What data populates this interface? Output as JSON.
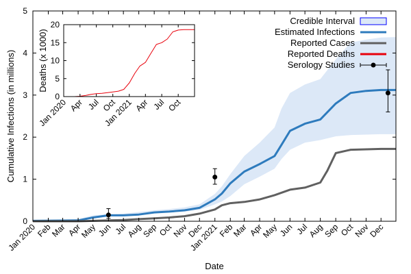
{
  "chart_data": [
    {
      "id": "main",
      "type": "line",
      "xlabel": "Date",
      "ylabel": "Cumulative Infections (in millions)",
      "ylim": [
        0,
        5
      ],
      "y_ticks": [
        0,
        1,
        2,
        3,
        4,
        5
      ],
      "x_domain": [
        "2020-01-01",
        "2021-12-31"
      ],
      "x_ticks": [
        {
          "date": "2020-01-01",
          "label": "Jan 2020"
        },
        {
          "date": "2020-02-01",
          "label": "Feb"
        },
        {
          "date": "2020-03-01",
          "label": "Mar"
        },
        {
          "date": "2020-04-01",
          "label": "Apr"
        },
        {
          "date": "2020-05-01",
          "label": "May"
        },
        {
          "date": "2020-06-01",
          "label": "Jun"
        },
        {
          "date": "2020-07-01",
          "label": "Jul"
        },
        {
          "date": "2020-08-01",
          "label": "Aug"
        },
        {
          "date": "2020-09-01",
          "label": "Sep"
        },
        {
          "date": "2020-10-01",
          "label": "Oct"
        },
        {
          "date": "2020-11-01",
          "label": "Nov"
        },
        {
          "date": "2020-12-01",
          "label": "Dec"
        },
        {
          "date": "2021-01-01",
          "label": "Jan 2021"
        },
        {
          "date": "2021-02-01",
          "label": "Feb"
        },
        {
          "date": "2021-03-01",
          "label": "Mar"
        },
        {
          "date": "2021-04-01",
          "label": "Apr"
        },
        {
          "date": "2021-05-01",
          "label": "May"
        },
        {
          "date": "2021-06-01",
          "label": "Jun"
        },
        {
          "date": "2021-07-01",
          "label": "Jul"
        },
        {
          "date": "2021-08-01",
          "label": "Aug"
        },
        {
          "date": "2021-09-01",
          "label": "Sep"
        },
        {
          "date": "2021-10-01",
          "label": "Oct"
        },
        {
          "date": "2021-11-01",
          "label": "Nov"
        },
        {
          "date": "2021-12-01",
          "label": "Dec"
        }
      ],
      "legend_position": "top-right",
      "credible_interval": {
        "name": "Credible Interval",
        "color": "#dce8f7",
        "edge_color": "#0000ff",
        "x": [
          "2020-01-01",
          "2020-04-01",
          "2020-05-01",
          "2020-06-01",
          "2020-07-01",
          "2020-08-01",
          "2020-09-01",
          "2020-10-01",
          "2020-11-01",
          "2020-12-01",
          "2021-01-01",
          "2021-01-15",
          "2021-02-01",
          "2021-03-01",
          "2021-04-01",
          "2021-05-01",
          "2021-05-15",
          "2021-06-01",
          "2021-07-01",
          "2021-08-01",
          "2021-09-01",
          "2021-10-01",
          "2021-11-01",
          "2021-12-01",
          "2021-12-31"
        ],
        "lower": [
          0,
          0,
          0.06,
          0.12,
          0.13,
          0.15,
          0.19,
          0.21,
          0.23,
          0.27,
          0.4,
          0.47,
          0.6,
          0.88,
          1.06,
          1.25,
          1.48,
          1.7,
          1.87,
          1.93,
          2.02,
          2.05,
          2.06,
          2.07,
          2.07
        ],
        "upper": [
          0.02,
          0.05,
          0.14,
          0.17,
          0.18,
          0.22,
          0.26,
          0.29,
          0.33,
          0.4,
          0.65,
          0.83,
          1.12,
          1.55,
          1.87,
          2.23,
          2.68,
          3.05,
          3.25,
          3.38,
          3.85,
          4.25,
          4.32,
          4.37,
          4.38
        ]
      },
      "series": [
        {
          "name": "Estimated Infections",
          "color": "#2e7bbd",
          "x": [
            "2020-01-01",
            "2020-04-01",
            "2020-05-01",
            "2020-06-01",
            "2020-07-01",
            "2020-08-01",
            "2020-09-01",
            "2020-10-01",
            "2020-11-01",
            "2020-12-01",
            "2021-01-01",
            "2021-01-15",
            "2021-02-01",
            "2021-03-01",
            "2021-04-01",
            "2021-05-01",
            "2021-05-15",
            "2021-06-01",
            "2021-07-01",
            "2021-08-01",
            "2021-09-01",
            "2021-10-01",
            "2021-11-01",
            "2021-12-01",
            "2021-12-31"
          ],
          "y": [
            0.01,
            0.02,
            0.09,
            0.14,
            0.14,
            0.16,
            0.21,
            0.23,
            0.26,
            0.32,
            0.52,
            0.66,
            0.9,
            1.18,
            1.36,
            1.55,
            1.82,
            2.15,
            2.32,
            2.42,
            2.8,
            3.05,
            3.1,
            3.12,
            3.12
          ]
        },
        {
          "name": "Reported Cases",
          "color": "#606060",
          "x": [
            "2020-01-01",
            "2020-04-01",
            "2020-05-01",
            "2020-06-01",
            "2020-07-01",
            "2020-08-01",
            "2020-09-01",
            "2020-10-01",
            "2020-11-01",
            "2020-12-01",
            "2021-01-01",
            "2021-01-15",
            "2021-02-01",
            "2021-03-01",
            "2021-04-01",
            "2021-05-01",
            "2021-06-01",
            "2021-07-01",
            "2021-08-01",
            "2021-08-15",
            "2021-09-01",
            "2021-10-01",
            "2021-11-01",
            "2021-12-01",
            "2021-12-31"
          ],
          "y": [
            0,
            0,
            0.01,
            0.02,
            0.03,
            0.05,
            0.07,
            0.09,
            0.12,
            0.18,
            0.28,
            0.38,
            0.43,
            0.46,
            0.52,
            0.62,
            0.75,
            0.8,
            0.92,
            1.2,
            1.62,
            1.7,
            1.71,
            1.72,
            1.72
          ]
        }
      ],
      "reported_deaths_legend": {
        "name": "Reported Deaths",
        "color": "#e8000b"
      },
      "serology": {
        "name": "Serology Studies",
        "points": [
          {
            "x": "2020-06-01",
            "y": 0.15,
            "ylow": 0.07,
            "yhigh": 0.3
          },
          {
            "x": "2021-01-01",
            "y": 1.05,
            "ylow": 0.88,
            "yhigh": 1.25
          },
          {
            "x": "2021-12-15",
            "y": 3.05,
            "ylow": 2.6,
            "yhigh": 3.6
          }
        ]
      },
      "legend": [
        {
          "label": "Credible Interval",
          "kind": "box"
        },
        {
          "label": "Estimated Infections",
          "kind": "line",
          "color": "#2e7bbd"
        },
        {
          "label": "Reported Cases",
          "kind": "line",
          "color": "#606060"
        },
        {
          "label": "Reported Deaths",
          "kind": "line",
          "color": "#e8000b"
        },
        {
          "label": "Serology Studies",
          "kind": "errorbar",
          "color": "#000000"
        }
      ]
    },
    {
      "id": "inset",
      "type": "line",
      "ylabel": "Deaths (x 1000)",
      "ylim": [
        0,
        20
      ],
      "y_ticks": [
        0,
        5,
        10,
        15,
        20
      ],
      "x_domain": [
        "2020-01-01",
        "2021-12-31"
      ],
      "x_ticks": [
        {
          "date": "2020-01-01",
          "label": "Jan 2020"
        },
        {
          "date": "2020-04-01",
          "label": "Apr"
        },
        {
          "date": "2020-07-01",
          "label": "Jul"
        },
        {
          "date": "2020-10-01",
          "label": "Oct"
        },
        {
          "date": "2021-01-01",
          "label": "Jan 2021"
        },
        {
          "date": "2021-04-01",
          "label": "Apr"
        },
        {
          "date": "2021-07-01",
          "label": "Jul"
        },
        {
          "date": "2021-10-01",
          "label": "Oct"
        }
      ],
      "series": [
        {
          "name": "Reported Deaths",
          "color": "#e8000b",
          "x": [
            "2020-01-01",
            "2020-03-01",
            "2020-04-01",
            "2020-05-01",
            "2020-06-01",
            "2020-07-01",
            "2020-08-01",
            "2020-09-01",
            "2020-10-01",
            "2020-11-01",
            "2020-12-01",
            "2021-01-01",
            "2021-02-01",
            "2021-03-01",
            "2021-04-01",
            "2021-05-01",
            "2021-06-01",
            "2021-07-01",
            "2021-08-01",
            "2021-09-01",
            "2021-10-01",
            "2021-11-01",
            "2021-12-01",
            "2021-12-31"
          ],
          "y": [
            0,
            0,
            0.1,
            0.3,
            0.6,
            0.8,
            0.9,
            1.1,
            1.3,
            1.5,
            2.0,
            3.8,
            6.5,
            8.5,
            9.5,
            12.0,
            14.5,
            15.0,
            16.0,
            18.0,
            18.5,
            18.6,
            18.6,
            18.6
          ]
        }
      ]
    }
  ]
}
